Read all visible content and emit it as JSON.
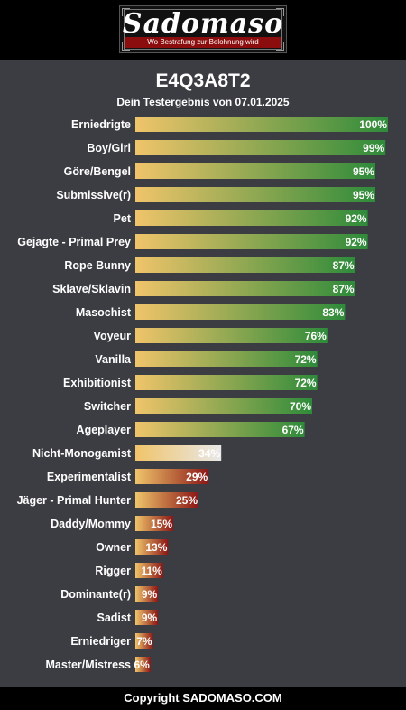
{
  "header": {
    "logo_title": "Sadomaso",
    "logo_slogan": "Wo Bestrafung zur Belohnung wird"
  },
  "footer": {
    "text": "Copyright SADOMASO.COM"
  },
  "colors": {
    "background": "#3b3d42",
    "bar_start": "#f0c46a",
    "bar_high_end": "#2e8b3a",
    "bar_low_end": "#8b1616",
    "bar_mid": "#e8e8e8"
  },
  "chart_data": {
    "type": "bar",
    "orientation": "horizontal",
    "title": "E4Q3A8T2",
    "subtitle": "Dein Testergebnis von 07.01.2025",
    "categories": [
      "Erniedrigte",
      "Boy/Girl",
      "Göre/Bengel",
      "Submissive(r)",
      "Pet",
      "Gejagte - Primal Prey",
      "Rope Bunny",
      "Sklave/Sklavin",
      "Masochist",
      "Voyeur",
      "Vanilla",
      "Exhibitionist",
      "Switcher",
      "Ageplayer",
      "Nicht-Monogamist",
      "Experimentalist",
      "Jäger - Primal Hunter",
      "Daddy/Mommy",
      "Owner",
      "Rigger",
      "Dominante(r)",
      "Sadist",
      "Erniedriger",
      "Master/Mistress"
    ],
    "values": [
      100,
      99,
      95,
      95,
      92,
      92,
      87,
      87,
      83,
      76,
      72,
      72,
      70,
      67,
      34,
      29,
      25,
      15,
      13,
      11,
      9,
      9,
      7,
      6
    ],
    "value_labels": [
      "100%",
      "99%",
      "95%",
      "95%",
      "92%",
      "92%",
      "87%",
      "87%",
      "83%",
      "76%",
      "72%",
      "72%",
      "70%",
      "67%",
      "34%",
      "29%",
      "25%",
      "15%",
      "13%",
      "11%",
      "9%",
      "9%",
      "7%",
      "6%"
    ],
    "xlim": [
      0,
      100
    ],
    "unit": "%"
  }
}
